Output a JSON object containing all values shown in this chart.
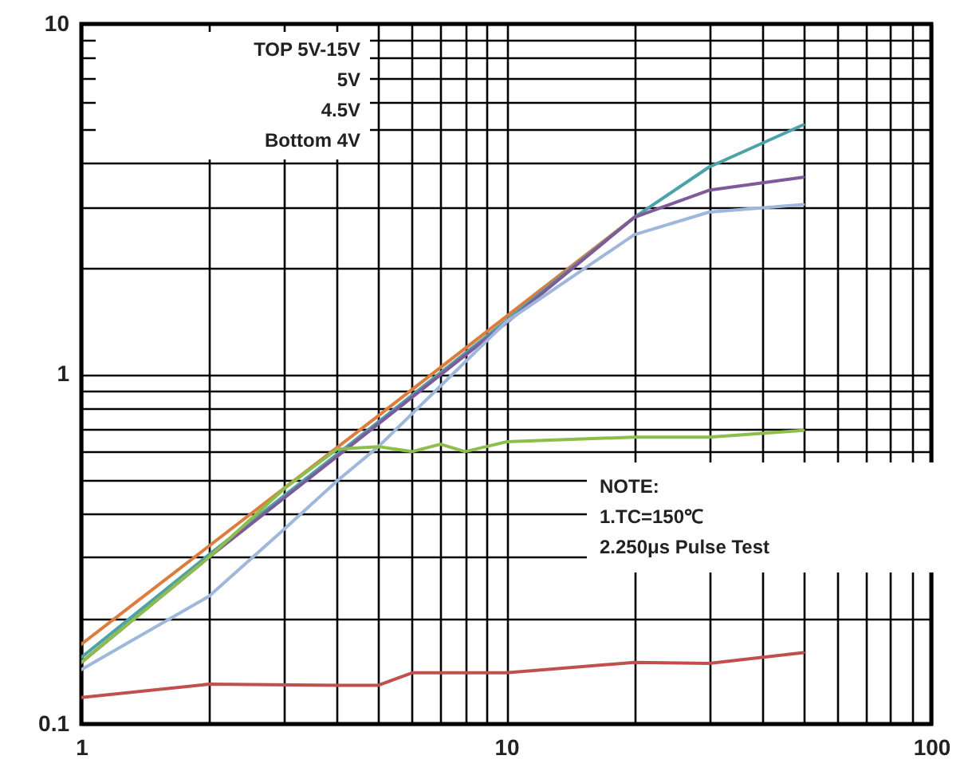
{
  "chart_data": {
    "type": "line",
    "xlim": [
      1,
      100
    ],
    "ylim": [
      0.1,
      10
    ],
    "log": "xy",
    "grid": true,
    "line_style": "solid",
    "marker": "none",
    "xticks": [
      1,
      {
        "value": 2,
        "label": null
      },
      {
        "value": 3,
        "label": null
      },
      {
        "value": 4,
        "label": null
      },
      {
        "value": 5,
        "label": null
      },
      {
        "value": 6,
        "label": null
      },
      {
        "value": 7,
        "label": null
      },
      {
        "value": 8,
        "label": null
      },
      {
        "value": 9,
        "label": null
      },
      10,
      {
        "value": 20,
        "label": null
      },
      {
        "value": 30,
        "label": null
      },
      {
        "value": 40,
        "label": null
      },
      {
        "value": 50,
        "label": null
      },
      {
        "value": 60,
        "label": null
      },
      {
        "value": 70,
        "label": null
      },
      {
        "value": 80,
        "label": null
      },
      {
        "value": 90,
        "label": null
      },
      100
    ],
    "yticks": [
      0.1,
      {
        "value": 0.2,
        "label": null
      },
      {
        "value": 0.3,
        "label": null
      },
      {
        "value": 0.4,
        "label": null
      },
      {
        "value": 0.5,
        "label": null
      },
      {
        "value": 0.6,
        "label": null
      },
      {
        "value": 0.7,
        "label": null
      },
      {
        "value": 0.8,
        "label": null
      },
      {
        "value": 0.9,
        "label": null
      },
      1,
      {
        "value": 2,
        "label": null
      },
      {
        "value": 3,
        "label": null
      },
      {
        "value": 4,
        "label": null
      },
      {
        "value": 5,
        "label": null
      },
      {
        "value": 6,
        "label": null
      },
      {
        "value": 7,
        "label": null
      },
      {
        "value": 8,
        "label": null
      },
      {
        "value": 9,
        "label": null
      },
      10
    ],
    "series": [
      {
        "color": "#e07b39",
        "x": [
          1,
          2,
          5,
          10,
          20
        ],
        "values": [
          0.169,
          0.323,
          0.76,
          1.46,
          2.8
        ]
      },
      {
        "color": "#4aa3a8",
        "x": [
          1,
          2,
          5,
          10,
          20,
          30,
          50
        ],
        "values": [
          0.155,
          0.305,
          0.73,
          1.42,
          2.8,
          3.9,
          5.15
        ]
      },
      {
        "color": "#7e5a9b",
        "x": [
          1,
          2,
          5,
          10,
          20,
          30,
          50
        ],
        "values": [
          0.15,
          0.3,
          0.72,
          1.4,
          2.8,
          3.35,
          3.65
        ]
      },
      {
        "color": "#9db8dc",
        "x": [
          1,
          2,
          3,
          4,
          5,
          10,
          20,
          30,
          50
        ],
        "values": [
          0.143,
          0.232,
          0.36,
          0.495,
          0.62,
          1.41,
          2.5,
          2.9,
          3.05
        ]
      },
      {
        "color": "#8cbf4a",
        "x": [
          1,
          2,
          3,
          4,
          5,
          6,
          7,
          8,
          10,
          20,
          30,
          50
        ],
        "values": [
          0.15,
          0.3,
          0.47,
          0.61,
          0.62,
          0.6,
          0.63,
          0.6,
          0.64,
          0.66,
          0.66,
          0.69
        ]
      },
      {
        "color": "#c0504d",
        "x": [
          1,
          2,
          4,
          5,
          6,
          10,
          20,
          30,
          50
        ],
        "values": [
          0.119,
          0.13,
          0.129,
          0.129,
          0.14,
          0.14,
          0.15,
          0.149,
          0.16
        ]
      }
    ],
    "annotations": [
      "TOP 5V-15V",
      "5V",
      "4.5V",
      "Bottom 4V",
      "NOTE:",
      "1.TC=150℃",
      "2.250μs Pulse Test"
    ]
  }
}
